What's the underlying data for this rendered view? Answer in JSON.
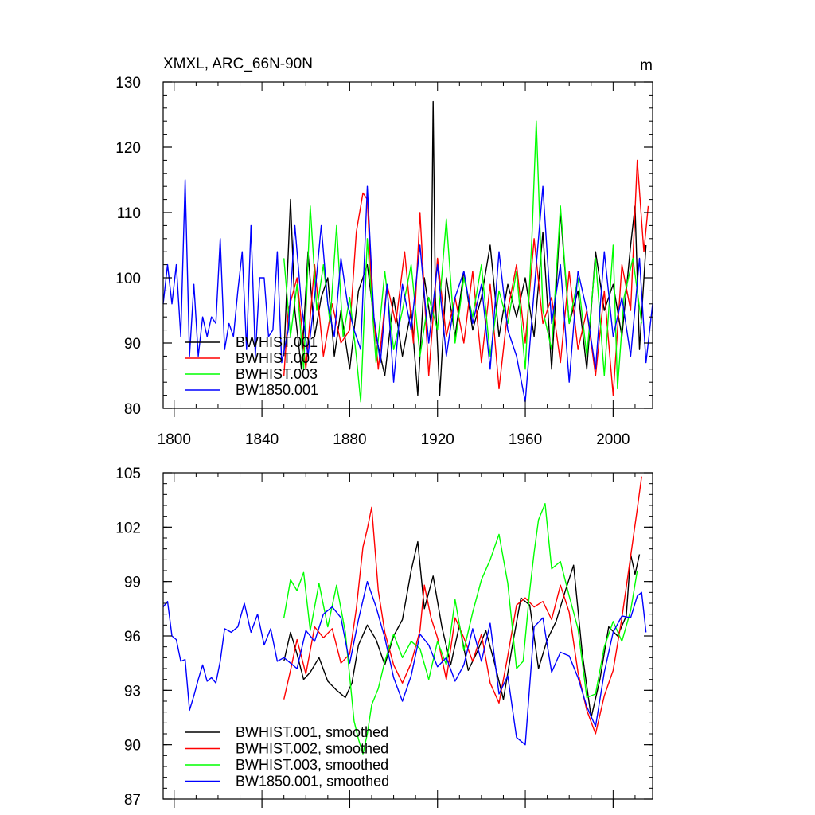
{
  "chart_data": [
    {
      "type": "line",
      "title": "XMXL, ARC_66N-90N",
      "units": "m",
      "xlim": [
        1795,
        2018
      ],
      "ylim": [
        80,
        130
      ],
      "xticks": [
        1800,
        1840,
        1880,
        1920,
        1960,
        2000
      ],
      "yticks": [
        80,
        90,
        100,
        110,
        120,
        130
      ],
      "xtick_labels": [
        "1800",
        "1840",
        "1880",
        "1920",
        "1960",
        "2000"
      ],
      "ytick_labels": [
        "80",
        "90",
        "100",
        "110",
        "120",
        "130"
      ],
      "series": [
        {
          "name": "BWHIST.001",
          "color": "#000000",
          "x": [
            1850,
            1853,
            1855,
            1858,
            1861,
            1864,
            1867,
            1870,
            1873,
            1876,
            1880,
            1884,
            1888,
            1892,
            1896,
            1900,
            1904,
            1908,
            1911,
            1914,
            1917,
            1918,
            1919,
            1921,
            1924,
            1928,
            1932,
            1936,
            1940,
            1944,
            1948,
            1952,
            1956,
            1960,
            1964,
            1968,
            1972,
            1976,
            1980,
            1984,
            1988,
            1992,
            1996,
            2000,
            2004,
            2008,
            2010,
            2012,
            2015
          ],
          "values": [
            88,
            112,
            95,
            86,
            104,
            91,
            97,
            100,
            88,
            95,
            86,
            98,
            102,
            91,
            85,
            97,
            88,
            95,
            82,
            100,
            93,
            127,
            97,
            82,
            100,
            91,
            101,
            92,
            97,
            105,
            91,
            99,
            94,
            100,
            91,
            107,
            86,
            110,
            93,
            98,
            86,
            104,
            95,
            99,
            91,
            105,
            111,
            89,
            105
          ]
        },
        {
          "name": "BWHIST.002",
          "color": "#ff0000",
          "x": [
            1850,
            1852,
            1856,
            1860,
            1864,
            1868,
            1872,
            1876,
            1880,
            1883,
            1886,
            1888,
            1890,
            1893,
            1897,
            1901,
            1905,
            1909,
            1912,
            1916,
            1920,
            1924,
            1928,
            1932,
            1936,
            1940,
            1944,
            1948,
            1952,
            1956,
            1960,
            1964,
            1968,
            1972,
            1976,
            1980,
            1984,
            1988,
            1992,
            1996,
            2000,
            2004,
            2008,
            2011,
            2014,
            2016
          ],
          "values": [
            85,
            95,
            100,
            86,
            102,
            88,
            96,
            90,
            92,
            107,
            113,
            112,
            98,
            86,
            99,
            93,
            104,
            90,
            110,
            85,
            103,
            91,
            97,
            90,
            101,
            87,
            99,
            83,
            95,
            102,
            90,
            106,
            93,
            97,
            87,
            101,
            89,
            95,
            85,
            98,
            82,
            102,
            95,
            118,
            104,
            111
          ]
        },
        {
          "name": "BWHIST.003",
          "color": "#00ff00",
          "x": [
            1850,
            1853,
            1856,
            1859,
            1862,
            1865,
            1868,
            1871,
            1874,
            1877,
            1880,
            1883,
            1885,
            1888,
            1892,
            1896,
            1900,
            1904,
            1908,
            1912,
            1916,
            1920,
            1924,
            1928,
            1932,
            1936,
            1940,
            1944,
            1948,
            1952,
            1956,
            1960,
            1963,
            1965,
            1968,
            1972,
            1976,
            1980,
            1984,
            1988,
            1992,
            1996,
            2000,
            2002,
            2005,
            2009,
            2013
          ],
          "values": [
            103,
            91,
            99,
            86,
            111,
            95,
            102,
            93,
            108,
            91,
            97,
            88,
            81,
            106,
            87,
            101,
            89,
            95,
            102,
            88,
            97,
            92,
            109,
            90,
            100,
            94,
            102,
            88,
            98,
            93,
            101,
            86,
            106,
            124,
            95,
            89,
            111,
            93,
            100,
            88,
            103,
            85,
            105,
            83,
            97,
            103,
            93
          ]
        },
        {
          "name": "BW1850.001",
          "color": "#0000ff",
          "x": [
            1795,
            1797,
            1799,
            1801,
            1803,
            1805,
            1807,
            1809,
            1811,
            1813,
            1815,
            1817,
            1819,
            1821,
            1823,
            1825,
            1827,
            1829,
            1831,
            1833,
            1835,
            1837,
            1839,
            1841,
            1843,
            1845,
            1847,
            1849,
            1852,
            1855,
            1858,
            1861,
            1864,
            1867,
            1870,
            1873,
            1876,
            1879,
            1882,
            1885,
            1888,
            1891,
            1894,
            1897,
            1900,
            1904,
            1908,
            1912,
            1916,
            1920,
            1924,
            1928,
            1932,
            1936,
            1940,
            1944,
            1948,
            1952,
            1956,
            1960,
            1964,
            1968,
            1972,
            1976,
            1980,
            1984,
            1988,
            1992,
            1996,
            2000,
            2004,
            2008,
            2012,
            2015,
            2018
          ],
          "values": [
            96,
            102,
            96,
            102,
            91,
            115,
            88,
            99,
            88,
            94,
            91,
            94,
            93,
            106,
            89,
            93,
            91,
            98,
            104,
            89,
            108,
            88,
            100,
            100,
            91,
            92,
            104,
            87,
            92,
            108,
            96,
            88,
            97,
            108,
            96,
            91,
            103,
            96,
            92,
            89,
            114,
            94,
            87,
            99,
            84,
            99,
            92,
            105,
            90,
            102,
            88,
            97,
            101,
            93,
            99,
            86,
            104,
            92,
            88,
            81,
            98,
            114,
            93,
            102,
            84,
            101,
            95,
            86,
            104,
            91,
            97,
            88,
            103,
            87,
            96
          ]
        }
      ]
    },
    {
      "type": "line",
      "title": "",
      "xlim": [
        1795,
        2018
      ],
      "ylim": [
        87,
        105
      ],
      "xticks": [
        1800,
        1840,
        1880,
        1920,
        1960,
        2000
      ],
      "yticks": [
        87,
        90,
        93,
        96,
        99,
        102,
        105
      ],
      "ytick_labels": [
        "87",
        "90",
        "93",
        "96",
        "99",
        "102",
        "105"
      ],
      "series": [
        {
          "name": "BWHIST.001, smoothed",
          "color": "#000000",
          "x": [
            1850,
            1853,
            1856,
            1859,
            1862,
            1866,
            1870,
            1874,
            1878,
            1881,
            1884,
            1888,
            1892,
            1896,
            1900,
            1904,
            1908,
            1911,
            1914,
            1918,
            1922,
            1926,
            1930,
            1934,
            1938,
            1942,
            1946,
            1950,
            1954,
            1958,
            1962,
            1966,
            1970,
            1974,
            1978,
            1982,
            1986,
            1990,
            1994,
            1998,
            2002,
            2006,
            2008,
            2010,
            2012
          ],
          "values": [
            94.6,
            96.2,
            95.0,
            93.6,
            94.0,
            94.8,
            93.5,
            93.0,
            92.6,
            93.4,
            95.5,
            96.6,
            95.8,
            94.4,
            96.0,
            96.9,
            99.6,
            101.2,
            97.5,
            99.3,
            96.5,
            94.4,
            96.6,
            94.1,
            95.1,
            96.3,
            94.5,
            92.5,
            95.4,
            98.1,
            97.7,
            94.2,
            95.8,
            96.8,
            98.4,
            99.9,
            95.0,
            91.5,
            93.6,
            96.5,
            96.0,
            97.1,
            100.5,
            99.4,
            100.5
          ]
        },
        {
          "name": "BWHIST.002, smoothed",
          "color": "#ff0000",
          "x": [
            1850,
            1853,
            1856,
            1860,
            1864,
            1868,
            1872,
            1876,
            1880,
            1883,
            1886,
            1888,
            1890,
            1893,
            1896,
            1900,
            1904,
            1908,
            1912,
            1914,
            1917,
            1920,
            1924,
            1928,
            1932,
            1936,
            1940,
            1944,
            1948,
            1952,
            1956,
            1960,
            1964,
            1968,
            1972,
            1976,
            1980,
            1984,
            1988,
            1992,
            1996,
            2000,
            2004,
            2008,
            2011,
            2013
          ],
          "values": [
            92.5,
            94.1,
            95.8,
            93.9,
            96.5,
            95.9,
            96.4,
            94.5,
            95.0,
            97.5,
            100.9,
            101.9,
            103.1,
            98.5,
            96.2,
            94.4,
            93.4,
            94.5,
            96.3,
            98.8,
            97.0,
            95.9,
            93.6,
            97.0,
            95.9,
            94.6,
            96.1,
            93.4,
            92.3,
            94.9,
            97.7,
            98.1,
            97.6,
            97.9,
            96.9,
            98.8,
            97.3,
            94.0,
            91.9,
            90.6,
            92.7,
            94.1,
            97.0,
            100.4,
            103.0,
            104.8
          ]
        },
        {
          "name": "BWHIST.003, smoothed",
          "color": "#00ff00",
          "x": [
            1850,
            1853,
            1856,
            1859,
            1862,
            1866,
            1870,
            1874,
            1878,
            1882,
            1884,
            1886,
            1888,
            1890,
            1893,
            1896,
            1900,
            1904,
            1908,
            1912,
            1916,
            1920,
            1924,
            1928,
            1932,
            1936,
            1940,
            1944,
            1948,
            1952,
            1956,
            1959,
            1962,
            1964,
            1966,
            1969,
            1972,
            1976,
            1980,
            1984,
            1988,
            1992,
            1996,
            2000,
            2004,
            2008,
            2011
          ],
          "values": [
            97.0,
            99.1,
            98.5,
            99.5,
            96.3,
            98.9,
            96.5,
            98.8,
            96.2,
            91.3,
            90.3,
            89.5,
            90.6,
            92.2,
            93.1,
            94.6,
            96.1,
            94.8,
            95.7,
            95.3,
            93.6,
            95.7,
            94.4,
            98.0,
            95.2,
            97.3,
            99.1,
            100.2,
            101.6,
            98.9,
            94.2,
            94.6,
            98.5,
            100.6,
            102.4,
            103.3,
            99.7,
            100.1,
            98.2,
            96.4,
            92.6,
            92.8,
            95.4,
            96.8,
            95.7,
            97.4,
            99.6
          ]
        },
        {
          "name": "BW1850.001, smoothed",
          "color": "#0000ff",
          "x": [
            1795,
            1797,
            1799,
            1801,
            1803,
            1805,
            1807,
            1809,
            1811,
            1813,
            1815,
            1817,
            1819,
            1821,
            1823,
            1826,
            1829,
            1832,
            1835,
            1838,
            1841,
            1844,
            1847,
            1850,
            1853,
            1856,
            1860,
            1864,
            1868,
            1872,
            1876,
            1880,
            1884,
            1888,
            1892,
            1896,
            1900,
            1904,
            1908,
            1912,
            1916,
            1920,
            1924,
            1928,
            1932,
            1936,
            1940,
            1944,
            1948,
            1952,
            1956,
            1960,
            1964,
            1968,
            1972,
            1976,
            1980,
            1984,
            1988,
            1992,
            1996,
            2000,
            2004,
            2008,
            2011,
            2013,
            2015
          ],
          "values": [
            97.6,
            97.9,
            96.0,
            95.8,
            94.6,
            94.7,
            91.9,
            92.7,
            93.6,
            94.4,
            93.5,
            93.7,
            93.4,
            94.6,
            96.4,
            96.2,
            96.5,
            97.8,
            96.2,
            97.2,
            95.5,
            96.4,
            94.6,
            94.8,
            94.5,
            94.2,
            96.3,
            95.7,
            97.2,
            97.6,
            97.0,
            94.5,
            96.9,
            99.0,
            97.6,
            95.9,
            93.7,
            92.4,
            93.8,
            96.1,
            95.5,
            94.3,
            94.8,
            93.5,
            94.4,
            96.4,
            94.6,
            96.7,
            92.8,
            93.8,
            90.4,
            90.0,
            96.5,
            97.0,
            94.0,
            95.1,
            94.9,
            93.7,
            92.1,
            91.0,
            94.0,
            96.2,
            97.1,
            97.0,
            98.2,
            98.4,
            96.2
          ]
        }
      ]
    }
  ]
}
